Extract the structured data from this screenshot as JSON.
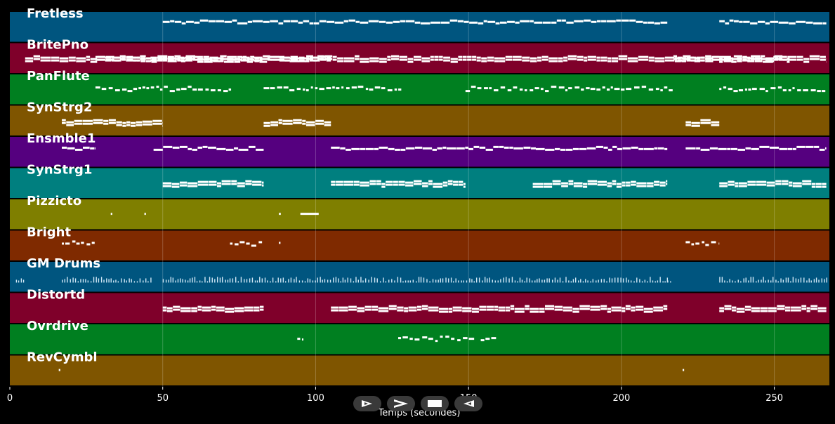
{
  "chart_data": {
    "type": "piano-roll",
    "xlabel": "Temps (secondes)",
    "xlim": [
      0,
      268
    ],
    "xticks": [
      0,
      50,
      100,
      150,
      200,
      250
    ],
    "grid": true,
    "tracks": [
      {
        "name": "Fretless",
        "color": "#00557f",
        "segments": [
          [
            50,
            215
          ],
          [
            232,
            267
          ]
        ],
        "style": "notes",
        "level": 0.3
      },
      {
        "name": "BritePno",
        "color": "#7f002a",
        "segments": [
          [
            5,
            50
          ],
          [
            28,
            105
          ],
          [
            50,
            160
          ],
          [
            160,
            255
          ],
          [
            217,
            230
          ],
          [
            230,
            267
          ]
        ],
        "style": "chords",
        "level": 0.45
      },
      {
        "name": "PanFlute",
        "color": "#007f20",
        "segments": [
          [
            28,
            73
          ],
          [
            83,
            128
          ],
          [
            149,
            217
          ],
          [
            232,
            267
          ]
        ],
        "style": "sparse",
        "level": 0.45
      },
      {
        "name": "SynStrg2",
        "color": "#7f5500",
        "segments": [
          [
            17,
            50
          ],
          [
            83,
            105
          ],
          [
            221,
            232
          ]
        ],
        "style": "chords",
        "level": 0.5
      },
      {
        "name": "Ensmble1",
        "color": "#55007f",
        "segments": [
          [
            17,
            28
          ],
          [
            47,
            83
          ],
          [
            105,
            150
          ],
          [
            150,
            172
          ],
          [
            172,
            215
          ],
          [
            221,
            267
          ]
        ],
        "style": "notes",
        "level": 0.35
      },
      {
        "name": "SynStrg1",
        "color": "#007f7f",
        "segments": [
          [
            50,
            83
          ],
          [
            105,
            149
          ],
          [
            171,
            215
          ],
          [
            232,
            267
          ]
        ],
        "style": "chords",
        "level": 0.45
      },
      {
        "name": "Pizzicto",
        "color": "#7f7f00",
        "segments": [
          [
            33,
            33.5
          ],
          [
            44,
            44.5
          ],
          [
            88,
            88.6
          ],
          [
            95,
            101
          ]
        ],
        "style": "dots",
        "level": 0.45
      },
      {
        "name": "Bright",
        "color": "#7f2a00",
        "segments": [
          [
            17,
            28
          ],
          [
            72,
            83
          ],
          [
            88,
            88.5
          ],
          [
            221,
            232
          ]
        ],
        "style": "sparse",
        "level": 0.4
      },
      {
        "name": "GM Drums",
        "color": "#00557f",
        "segments": [
          [
            2,
            5
          ],
          [
            17,
            46
          ],
          [
            50,
            215
          ],
          [
            215,
            216
          ],
          [
            232,
            267
          ]
        ],
        "style": "drums",
        "level": 0.6
      },
      {
        "name": "Distortd",
        "color": "#7f002a",
        "segments": [
          [
            50,
            83
          ],
          [
            105,
            215
          ],
          [
            232,
            267
          ]
        ],
        "style": "chords",
        "level": 0.45
      },
      {
        "name": "Ovrdrive",
        "color": "#007f20",
        "segments": [
          [
            94,
            96
          ],
          [
            127,
            152
          ],
          [
            154,
            159
          ]
        ],
        "style": "sparse",
        "level": 0.45
      },
      {
        "name": "RevCymbl",
        "color": "#7f5500",
        "segments": [
          [
            16,
            16.5
          ],
          [
            220,
            220.5
          ]
        ],
        "style": "dots",
        "level": 0.45
      }
    ]
  },
  "controls": [
    {
      "name": "play-forward-button",
      "glyph": "play-outline"
    },
    {
      "name": "fast-forward-button",
      "glyph": "chevron"
    },
    {
      "name": "stop-button",
      "glyph": "square"
    },
    {
      "name": "play-backward-button",
      "glyph": "play-outline-left"
    }
  ]
}
